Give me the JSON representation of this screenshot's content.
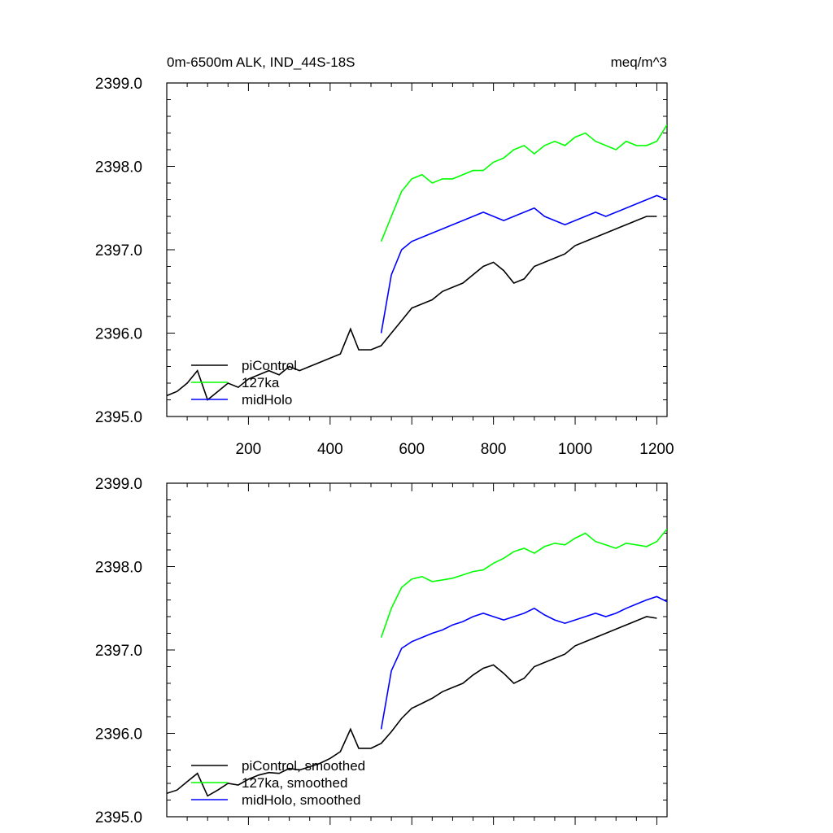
{
  "chart_data": [
    {
      "type": "line",
      "title": "0m-6500m ALK, IND_44S-18S",
      "units": "meq/m^3",
      "xlim": [
        0,
        1225
      ],
      "ylim": [
        2395.0,
        2399.0
      ],
      "xticks": [
        200,
        400,
        600,
        800,
        1000,
        1200
      ],
      "xtick_labels": [
        "200",
        "400",
        "600",
        "800",
        "1000",
        "1200"
      ],
      "yticks": [
        2395.0,
        2396.0,
        2397.0,
        2398.0,
        2399.0
      ],
      "ytick_labels": [
        "2395.0",
        "2396.0",
        "2397.0",
        "2398.0",
        "2399.0"
      ],
      "legend_position": "bottom-left",
      "series": [
        {
          "name": "piControl",
          "color": "#000000",
          "x": [
            0,
            25,
            50,
            75,
            100,
            125,
            150,
            175,
            200,
            225,
            250,
            275,
            300,
            325,
            350,
            375,
            400,
            425,
            450,
            470,
            500,
            525,
            550,
            575,
            600,
            625,
            650,
            675,
            700,
            725,
            750,
            775,
            800,
            825,
            850,
            875,
            900,
            925,
            950,
            975,
            1000,
            1025,
            1050,
            1075,
            1100,
            1125,
            1150,
            1175,
            1200
          ],
          "values": [
            2395.25,
            2395.3,
            2395.4,
            2395.55,
            2395.2,
            2395.3,
            2395.4,
            2395.35,
            2395.45,
            2395.5,
            2395.55,
            2395.5,
            2395.6,
            2395.55,
            2395.6,
            2395.65,
            2395.7,
            2395.75,
            2396.05,
            2395.8,
            2395.8,
            2395.85,
            2396.0,
            2396.15,
            2396.3,
            2396.35,
            2396.4,
            2396.5,
            2396.55,
            2396.6,
            2396.7,
            2396.8,
            2396.85,
            2396.75,
            2396.6,
            2396.65,
            2396.8,
            2396.85,
            2396.9,
            2396.95,
            2397.05,
            2397.1,
            2397.15,
            2397.2,
            2397.25,
            2397.3,
            2397.35,
            2397.4,
            2397.4
          ]
        },
        {
          "name": "127ka",
          "color": "#00ff00",
          "x": [
            525,
            550,
            575,
            600,
            625,
            650,
            675,
            700,
            725,
            750,
            775,
            800,
            825,
            850,
            875,
            900,
            925,
            950,
            975,
            1000,
            1025,
            1050,
            1075,
            1100,
            1125,
            1150,
            1175,
            1200,
            1225
          ],
          "values": [
            2397.1,
            2397.4,
            2397.7,
            2397.85,
            2397.9,
            2397.8,
            2397.85,
            2397.85,
            2397.9,
            2397.95,
            2397.95,
            2398.05,
            2398.1,
            2398.2,
            2398.25,
            2398.15,
            2398.25,
            2398.3,
            2398.25,
            2398.35,
            2398.4,
            2398.3,
            2398.25,
            2398.2,
            2398.3,
            2398.25,
            2398.25,
            2398.3,
            2398.5
          ]
        },
        {
          "name": "midHolo",
          "color": "#0000ff",
          "x": [
            525,
            550,
            575,
            600,
            625,
            650,
            675,
            700,
            725,
            750,
            775,
            800,
            825,
            850,
            875,
            900,
            925,
            950,
            975,
            1000,
            1025,
            1050,
            1075,
            1100,
            1125,
            1150,
            1175,
            1200,
            1225
          ],
          "values": [
            2396.0,
            2396.7,
            2397.0,
            2397.1,
            2397.15,
            2397.2,
            2397.25,
            2397.3,
            2397.35,
            2397.4,
            2397.45,
            2397.4,
            2397.35,
            2397.4,
            2397.45,
            2397.5,
            2397.4,
            2397.35,
            2397.3,
            2397.35,
            2397.4,
            2397.45,
            2397.4,
            2397.45,
            2397.5,
            2397.55,
            2397.6,
            2397.65,
            2397.6
          ]
        }
      ]
    },
    {
      "type": "line",
      "xlim": [
        0,
        1225
      ],
      "ylim": [
        2395.0,
        2399.0
      ],
      "yticks": [
        2395.0,
        2396.0,
        2397.0,
        2398.0,
        2399.0
      ],
      "ytick_labels": [
        "2395.0",
        "2396.0",
        "2397.0",
        "2398.0",
        "2399.0"
      ],
      "legend_position": "bottom-left",
      "series": [
        {
          "name": "piControl, smoothed",
          "color": "#000000",
          "x": [
            0,
            25,
            50,
            75,
            100,
            125,
            150,
            175,
            200,
            225,
            250,
            275,
            300,
            325,
            350,
            375,
            400,
            425,
            450,
            470,
            500,
            525,
            550,
            575,
            600,
            625,
            650,
            675,
            700,
            725,
            750,
            775,
            800,
            825,
            850,
            875,
            900,
            925,
            950,
            975,
            1000,
            1025,
            1050,
            1075,
            1100,
            1125,
            1150,
            1175,
            1200
          ],
          "values": [
            2395.28,
            2395.32,
            2395.42,
            2395.52,
            2395.25,
            2395.32,
            2395.4,
            2395.38,
            2395.45,
            2395.5,
            2395.53,
            2395.52,
            2395.58,
            2395.56,
            2395.6,
            2395.64,
            2395.7,
            2395.78,
            2396.05,
            2395.82,
            2395.82,
            2395.88,
            2396.02,
            2396.18,
            2396.3,
            2396.36,
            2396.42,
            2396.5,
            2396.55,
            2396.6,
            2396.7,
            2396.78,
            2396.82,
            2396.72,
            2396.6,
            2396.66,
            2396.8,
            2396.85,
            2396.9,
            2396.95,
            2397.05,
            2397.1,
            2397.15,
            2397.2,
            2397.25,
            2397.3,
            2397.35,
            2397.4,
            2397.38
          ]
        },
        {
          "name": "127ka, smoothed",
          "color": "#00ff00",
          "x": [
            525,
            550,
            575,
            600,
            625,
            650,
            675,
            700,
            725,
            750,
            775,
            800,
            825,
            850,
            875,
            900,
            925,
            950,
            975,
            1000,
            1025,
            1050,
            1075,
            1100,
            1125,
            1150,
            1175,
            1200,
            1225
          ],
          "values": [
            2397.15,
            2397.5,
            2397.75,
            2397.85,
            2397.88,
            2397.82,
            2397.84,
            2397.86,
            2397.9,
            2397.94,
            2397.96,
            2398.04,
            2398.1,
            2398.18,
            2398.22,
            2398.16,
            2398.24,
            2398.28,
            2398.26,
            2398.34,
            2398.4,
            2398.3,
            2398.26,
            2398.22,
            2398.28,
            2398.26,
            2398.24,
            2398.3,
            2398.45
          ]
        },
        {
          "name": "midHolo, smoothed",
          "color": "#0000ff",
          "x": [
            525,
            550,
            575,
            600,
            625,
            650,
            675,
            700,
            725,
            750,
            775,
            800,
            825,
            850,
            875,
            900,
            925,
            950,
            975,
            1000,
            1025,
            1050,
            1075,
            1100,
            1125,
            1150,
            1175,
            1200,
            1225
          ],
          "values": [
            2396.05,
            2396.75,
            2397.02,
            2397.1,
            2397.15,
            2397.2,
            2397.24,
            2397.3,
            2397.34,
            2397.4,
            2397.44,
            2397.4,
            2397.36,
            2397.4,
            2397.44,
            2397.5,
            2397.42,
            2397.36,
            2397.32,
            2397.36,
            2397.4,
            2397.44,
            2397.4,
            2397.44,
            2397.5,
            2397.55,
            2397.6,
            2397.64,
            2397.58
          ]
        }
      ]
    }
  ]
}
